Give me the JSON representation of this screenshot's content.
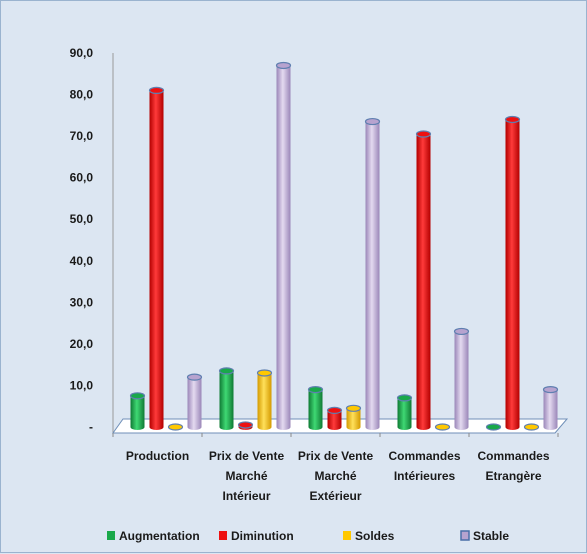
{
  "chart_data": {
    "type": "bar",
    "categories": [
      [
        "Production"
      ],
      [
        "Prix de Vente",
        "Marché",
        "Intérieur"
      ],
      [
        "Prix de Vente",
        "Marché",
        "Extérieur"
      ],
      [
        "Commandes",
        "Intérieures"
      ],
      [
        "Commandes",
        "Etrangère"
      ]
    ],
    "series": [
      {
        "name": "Augmentation",
        "color": "#19a84a",
        "values": [
          7.5,
          13.5,
          9.0,
          7.0,
          0.0
        ]
      },
      {
        "name": "Diminution",
        "color": "#ee1111",
        "values": [
          81.0,
          0.5,
          4.0,
          70.5,
          74.0
        ]
      },
      {
        "name": "Soldes",
        "color": "#ffc800",
        "values": [
          0.0,
          13.0,
          4.5,
          0.0,
          0.0
        ]
      },
      {
        "name": "Stable",
        "color": "#b7a3cf",
        "values": [
          12.0,
          87.0,
          73.5,
          23.0,
          9.0
        ]
      }
    ],
    "y_ticks": [
      "-",
      "10,0",
      "20,0",
      "30,0",
      "40,0",
      "50,0",
      "60,0",
      "70,0",
      "80,0",
      "90,0"
    ],
    "ylim": [
      0,
      90
    ],
    "legend_position": "bottom",
    "grid": false
  }
}
